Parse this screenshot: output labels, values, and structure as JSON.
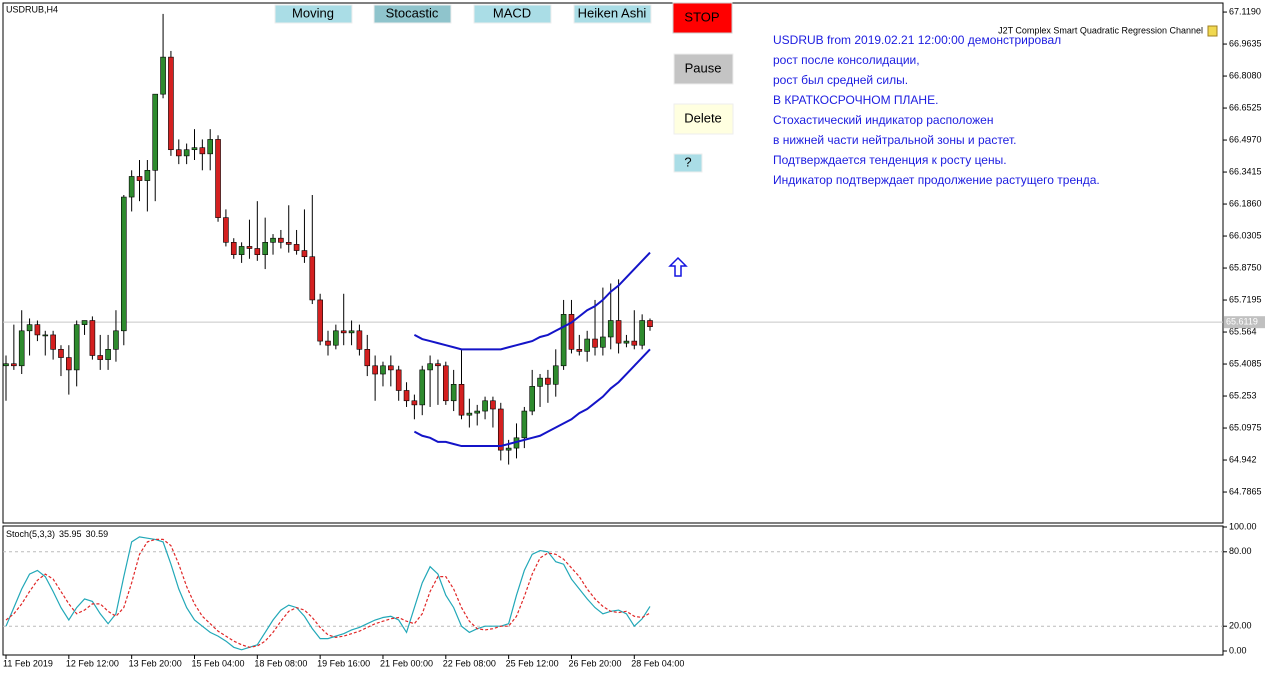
{
  "buttons": [
    "Moving",
    "Stocastic",
    "MACD",
    "Heiken Ashi"
  ],
  "controls": [
    "STOP",
    "Pause",
    "Delete",
    "?"
  ],
  "comment_lines": [
    "USDRUB from 2019.02.21 12:00:00 демонстрировал",
    "рост  после консолидации,",
    "рост был средней силы.",
    "В КРАТКОСРОЧНОМ ПЛАНЕ.",
    "Стохастический индикатор расположен",
    "в нижней части нейтральной зоны и растет.",
    "Подтверждается тенденция к росту цены.",
    "Индикатор подтверждает продолжение растущего тренда."
  ],
  "chart_data": [
    {
      "type": "candlestick",
      "title": "USDRUB,H4",
      "indicator": "J2T Complex Smart Quadratic Regression Channel",
      "categories": [
        "11 Feb 2019",
        null,
        null,
        null,
        null,
        null,
        null,
        null,
        "12 Feb 12:00",
        null,
        null,
        null,
        null,
        null,
        null,
        null,
        "13 Feb 20:00",
        null,
        null,
        null,
        null,
        null,
        null,
        null,
        "15 Feb 04:00",
        null,
        null,
        null,
        null,
        null,
        null,
        null,
        "18 Feb 08:00",
        null,
        null,
        null,
        null,
        null,
        null,
        null,
        "19 Feb 16:00",
        null,
        null,
        null,
        null,
        null,
        null,
        null,
        "21 Feb 00:00",
        null,
        null,
        null,
        null,
        null,
        null,
        null,
        "22 Feb 08:00",
        null,
        null,
        null,
        null,
        null,
        null,
        null,
        "25 Feb 12:00",
        null,
        null,
        null,
        null,
        null,
        null,
        null,
        "26 Feb 20:00",
        null,
        null,
        null,
        null,
        null,
        null,
        null,
        "28 Feb 04:00",
        null,
        null
      ],
      "open": [
        65.4,
        65.41,
        65.4,
        65.57,
        65.6,
        65.55,
        65.55,
        65.48,
        65.44,
        65.38,
        65.6,
        65.62,
        65.45,
        65.43,
        65.48,
        65.57,
        66.22,
        66.32,
        66.3,
        66.35,
        66.72,
        66.9,
        66.45,
        66.42,
        66.45,
        66.46,
        66.43,
        66.5,
        66.12,
        66.0,
        65.94,
        65.98,
        65.97,
        65.94,
        66.0,
        66.02,
        66.0,
        65.99,
        65.96,
        65.93,
        65.72,
        65.52,
        65.5,
        65.57,
        65.56,
        65.57,
        65.48,
        65.4,
        65.36,
        65.4,
        65.38,
        65.28,
        65.23,
        65.21,
        65.38,
        65.41,
        65.4,
        65.23,
        65.31,
        65.16,
        65.17,
        65.18,
        65.23,
        65.19,
        64.99,
        65.0,
        65.05,
        65.18,
        65.3,
        65.34,
        65.31,
        65.4,
        65.65,
        65.48,
        65.47,
        65.53,
        65.49,
        65.54,
        65.62,
        65.51,
        65.52,
        65.5,
        65.62
      ],
      "high": [
        65.45,
        65.6,
        65.67,
        65.63,
        65.62,
        65.57,
        65.57,
        65.5,
        65.5,
        65.62,
        65.62,
        65.64,
        65.55,
        65.55,
        65.67,
        66.23,
        66.35,
        66.4,
        66.4,
        66.72,
        67.11,
        66.93,
        66.5,
        66.48,
        66.55,
        66.5,
        66.55,
        66.52,
        66.16,
        66.02,
        66.0,
        66.11,
        66.2,
        66.12,
        66.04,
        66.06,
        66.18,
        66.06,
        66.16,
        66.23,
        65.75,
        65.57,
        65.6,
        65.75,
        65.62,
        65.6,
        65.55,
        65.45,
        65.42,
        65.45,
        65.4,
        65.32,
        65.26,
        65.4,
        65.45,
        65.43,
        65.42,
        65.38,
        65.48,
        65.24,
        65.21,
        65.25,
        65.25,
        65.22,
        65.04,
        65.12,
        65.2,
        65.38,
        65.36,
        65.38,
        65.48,
        65.72,
        65.72,
        65.55,
        65.57,
        65.72,
        65.78,
        65.8,
        65.82,
        65.55,
        65.67,
        65.65,
        65.63
      ],
      "low": [
        65.23,
        65.38,
        65.36,
        65.45,
        65.52,
        65.45,
        65.43,
        65.35,
        65.26,
        65.3,
        65.55,
        65.43,
        65.38,
        65.38,
        65.42,
        65.5,
        66.15,
        66.2,
        66.15,
        66.2,
        66.7,
        66.42,
        66.38,
        66.38,
        66.4,
        66.35,
        66.35,
        66.1,
        65.98,
        65.92,
        65.9,
        65.92,
        65.91,
        65.87,
        65.94,
        65.97,
        65.95,
        65.94,
        65.9,
        65.7,
        65.5,
        65.45,
        65.48,
        65.5,
        65.5,
        65.45,
        65.35,
        65.23,
        65.3,
        65.3,
        65.23,
        65.2,
        65.14,
        65.16,
        65.2,
        65.21,
        65.21,
        65.18,
        65.14,
        65.1,
        65.11,
        65.14,
        65.1,
        64.94,
        64.92,
        64.95,
        65.0,
        65.16,
        65.2,
        65.22,
        65.25,
        65.38,
        65.46,
        65.45,
        65.42,
        65.45,
        65.45,
        65.48,
        65.46,
        65.49,
        65.48,
        65.48,
        65.57
      ],
      "close": [
        65.41,
        65.4,
        65.57,
        65.6,
        65.55,
        65.55,
        65.48,
        65.44,
        65.38,
        65.6,
        65.62,
        65.45,
        65.43,
        65.48,
        65.57,
        66.22,
        66.32,
        66.3,
        66.35,
        66.72,
        66.9,
        66.45,
        66.42,
        66.45,
        66.46,
        66.43,
        66.5,
        66.12,
        66.0,
        65.94,
        65.98,
        65.97,
        65.94,
        66.0,
        66.02,
        66.0,
        65.99,
        65.96,
        65.93,
        65.72,
        65.52,
        65.5,
        65.57,
        65.56,
        65.57,
        65.48,
        65.4,
        65.36,
        65.4,
        65.38,
        65.28,
        65.23,
        65.21,
        65.38,
        65.41,
        65.4,
        65.23,
        65.31,
        65.16,
        65.17,
        65.18,
        65.23,
        65.19,
        64.99,
        65.0,
        65.05,
        65.18,
        65.3,
        65.34,
        65.31,
        65.4,
        65.65,
        65.48,
        65.47,
        65.53,
        65.49,
        65.54,
        65.62,
        65.51,
        65.52,
        65.5,
        65.62,
        65.59
      ],
      "up_color": "#2e8b2e",
      "down_color": "#d42020",
      "channel": {
        "color": "#1414c8",
        "upper": [
          null,
          null,
          null,
          null,
          null,
          null,
          null,
          null,
          null,
          null,
          null,
          null,
          null,
          null,
          null,
          null,
          null,
          null,
          null,
          null,
          null,
          null,
          null,
          null,
          null,
          null,
          null,
          null,
          null,
          null,
          null,
          null,
          null,
          null,
          null,
          null,
          null,
          null,
          null,
          null,
          null,
          null,
          null,
          null,
          null,
          null,
          null,
          null,
          null,
          null,
          null,
          null,
          65.55,
          65.53,
          65.52,
          65.51,
          65.5,
          65.49,
          65.48,
          65.48,
          65.48,
          65.48,
          65.48,
          65.48,
          65.49,
          65.5,
          65.51,
          65.52,
          65.54,
          65.55,
          65.57,
          65.59,
          65.61,
          65.64,
          65.67,
          65.69,
          65.72,
          65.76,
          65.79,
          65.83,
          65.87,
          65.91,
          65.95
        ],
        "lower": [
          null,
          null,
          null,
          null,
          null,
          null,
          null,
          null,
          null,
          null,
          null,
          null,
          null,
          null,
          null,
          null,
          null,
          null,
          null,
          null,
          null,
          null,
          null,
          null,
          null,
          null,
          null,
          null,
          null,
          null,
          null,
          null,
          null,
          null,
          null,
          null,
          null,
          null,
          null,
          null,
          null,
          null,
          null,
          null,
          null,
          null,
          null,
          null,
          null,
          null,
          null,
          null,
          65.08,
          65.06,
          65.05,
          65.03,
          65.03,
          65.02,
          65.01,
          65.01,
          65.01,
          65.01,
          65.01,
          65.01,
          65.02,
          65.03,
          65.04,
          65.05,
          65.06,
          65.08,
          65.1,
          65.12,
          65.14,
          65.17,
          65.19,
          65.22,
          65.25,
          65.29,
          65.32,
          65.36,
          65.4,
          65.44,
          65.48
        ]
      },
      "current_price": 65.6119,
      "ylim": [
        64.636,
        67.163
      ],
      "yticks": [
        {
          "value": 67.119,
          "label": "67.1190"
        },
        {
          "value": 66.9635,
          "label": "66.9635"
        },
        {
          "value": 66.808,
          "label": "66.8080"
        },
        {
          "value": 66.6525,
          "label": "66.6525"
        },
        {
          "value": 66.497,
          "label": "66.4970"
        },
        {
          "value": 66.3415,
          "label": "66.3415"
        },
        {
          "value": 66.186,
          "label": "66.1860"
        },
        {
          "value": 66.0305,
          "label": "66.0305"
        },
        {
          "value": 65.875,
          "label": "65.8750"
        },
        {
          "value": 65.7195,
          "label": "65.7195"
        },
        65.564,
        {
          "value": 65.4085,
          "label": "65.4085"
        },
        65.253,
        {
          "value": 65.0975,
          "label": "65.0975"
        },
        64.942,
        {
          "value": 64.7865,
          "label": "64.7865"
        }
      ],
      "grid": false
    },
    {
      "type": "line",
      "title": "Stoch(5,3,3)",
      "series": [
        {
          "color": "#22a8b8",
          "dashed": false,
          "values": [
            20,
            35,
            50,
            62,
            65,
            60,
            48,
            35,
            25,
            35,
            42,
            40,
            30,
            22,
            30,
            60,
            88,
            92,
            91,
            90,
            88,
            70,
            50,
            35,
            25,
            20,
            15,
            12,
            8,
            3,
            1,
            3,
            5,
            15,
            25,
            33,
            37,
            35,
            28,
            18,
            10,
            10,
            12,
            14,
            17,
            19,
            22,
            25,
            27,
            28,
            25,
            15,
            35,
            55,
            68,
            62,
            45,
            35,
            20,
            15,
            18,
            20,
            20,
            20,
            22,
            45,
            65,
            78,
            81,
            80,
            72,
            70,
            58,
            50,
            42,
            35,
            30,
            32,
            33,
            30,
            20,
            26,
            35.95
          ]
        },
        {
          "color": "#e02828",
          "dashed": true,
          "values": [
            25,
            30,
            38,
            48,
            57,
            62,
            58,
            48,
            38,
            30,
            33,
            38,
            38,
            32,
            28,
            35,
            55,
            78,
            88,
            90,
            90,
            85,
            70,
            52,
            38,
            28,
            22,
            16,
            12,
            8,
            5,
            3,
            4,
            8,
            15,
            24,
            32,
            35,
            33,
            27,
            19,
            13,
            11,
            12,
            14,
            16,
            19,
            22,
            24,
            26,
            27,
            24,
            22,
            30,
            48,
            60,
            60,
            50,
            35,
            24,
            18,
            17,
            18,
            20,
            20,
            28,
            44,
            62,
            75,
            79,
            78,
            74,
            67,
            60,
            50,
            42,
            36,
            32,
            31,
            32,
            28,
            27,
            30.59
          ]
        }
      ],
      "ylim": [
        0,
        100
      ],
      "yticks": [
        {
          "value": 100,
          "label": "100.00"
        },
        {
          "value": 80,
          "label": "80.00"
        },
        {
          "value": 20,
          "label": "20.00"
        },
        {
          "value": 0,
          "label": "0.00"
        }
      ]
    }
  ]
}
